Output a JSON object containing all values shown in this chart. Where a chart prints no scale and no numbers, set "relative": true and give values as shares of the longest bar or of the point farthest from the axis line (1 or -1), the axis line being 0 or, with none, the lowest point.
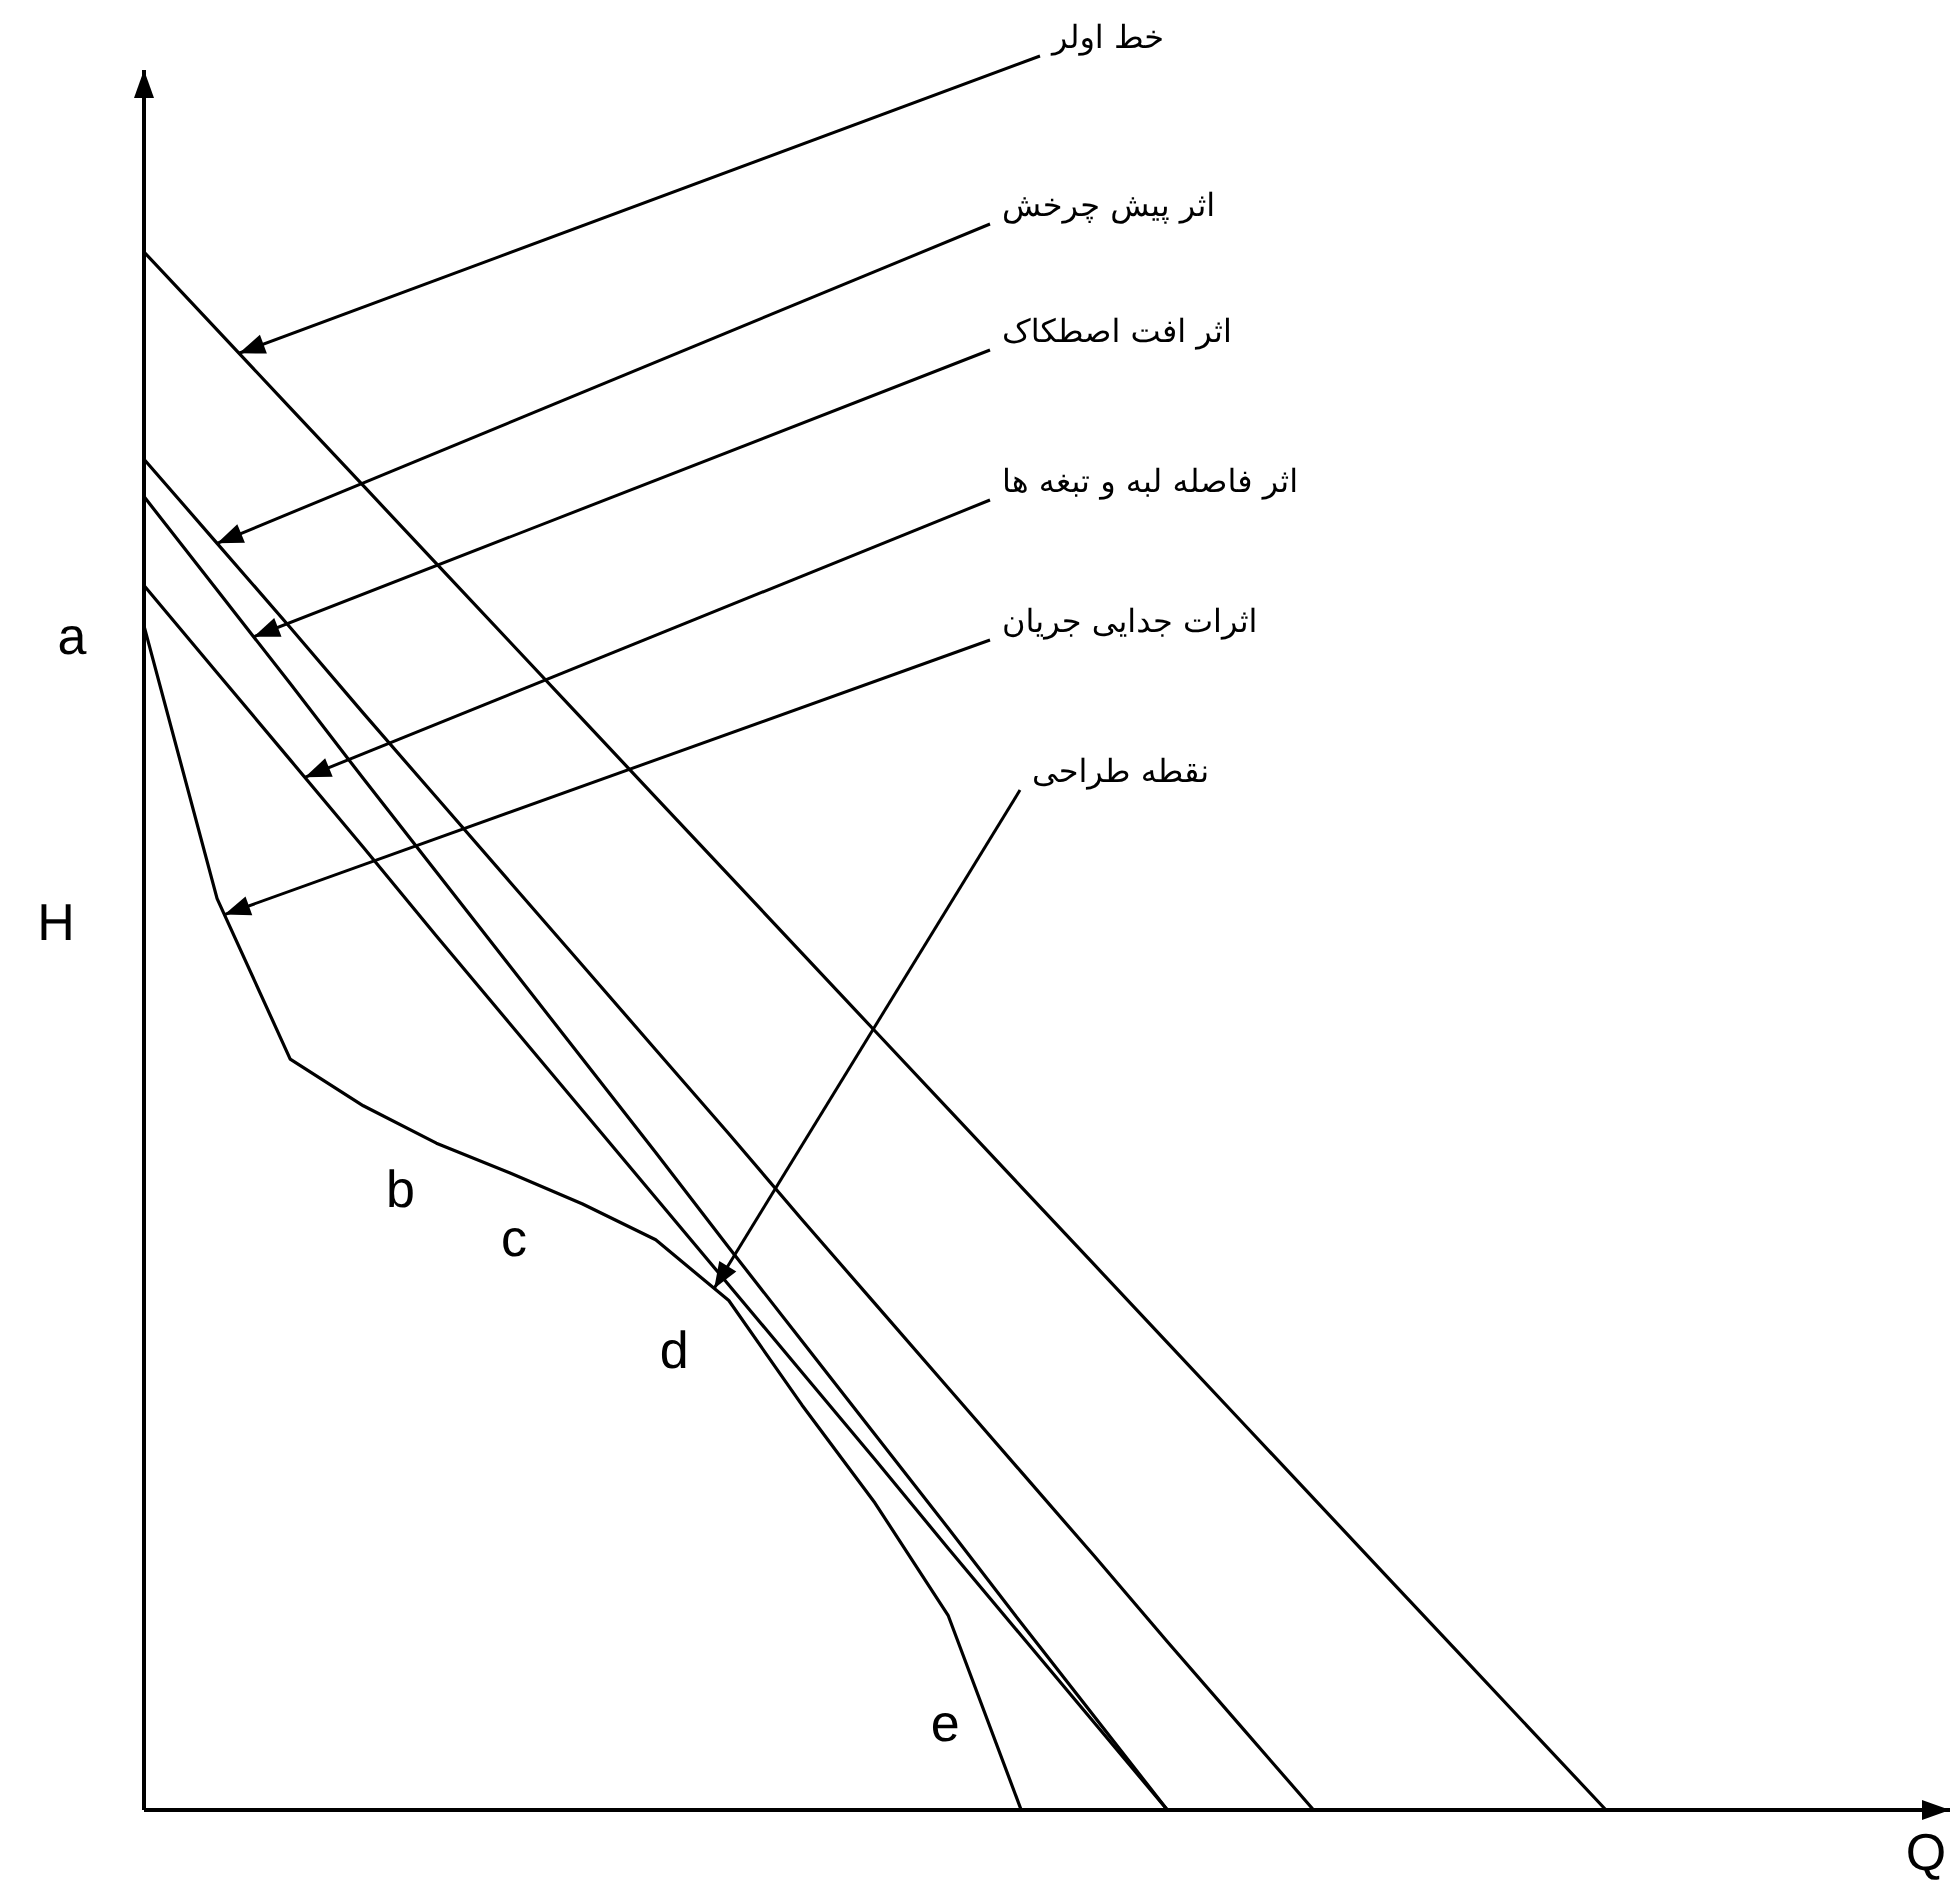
{
  "chart_data": {
    "type": "line",
    "relative": true,
    "ylabel": "H",
    "line_style": "solid",
    "categories": [
      null,
      null,
      null,
      null,
      null,
      null,
      null,
      null,
      null,
      null,
      null,
      null,
      null,
      null,
      null,
      null,
      null,
      null,
      null,
      null,
      null
    ],
    "series": [
      {
        "color": "#000000",
        "values": [
          1,
          0.95,
          0.9,
          0.85,
          0.8,
          0.75,
          0.7,
          0.65,
          0.6,
          0.55,
          0.5,
          0.45,
          0.4,
          0.35,
          0.3,
          0.25,
          0.2,
          0.15,
          0.1,
          0.05,
          0
        ]
      },
      {
        "color": "#000000",
        "values": [
          0.867,
          0.813,
          0.759,
          0.704,
          0.65,
          0.596,
          0.542,
          0.488,
          0.434,
          0.379,
          0.325,
          0.271,
          0.217,
          0.163,
          0.108,
          0.054,
          0,
          null,
          null,
          null,
          null
        ]
      },
      {
        "color": "#000000",
        "values": [
          0.843,
          0.783,
          0.723,
          0.662,
          0.602,
          0.542,
          0.482,
          0.422,
          0.361,
          0.301,
          0.241,
          0.181,
          0.12,
          0.06,
          0,
          null,
          null,
          null,
          null,
          null,
          null
        ]
      },
      {
        "color": "#000000",
        "values": [
          0.786,
          0.73,
          0.674,
          0.618,
          0.561,
          0.505,
          0.449,
          0.393,
          0.337,
          0.281,
          0.225,
          0.168,
          0.112,
          0.056,
          0,
          null,
          null,
          null,
          null,
          null,
          null
        ]
      },
      {
        "color": "#000000",
        "values": [
          0.76,
          0.585,
          0.482,
          0.452,
          0.428,
          0.409,
          0.389,
          0.366,
          0.327,
          0.26,
          0.197,
          0.125,
          0,
          null,
          null,
          null,
          null,
          null,
          null,
          null,
          null
        ]
      }
    ],
    "annotations": [
      "خط اولر",
      "اثر پیش چرخش",
      "اثر افت اصطکاک",
      "اثر فاصله لبه و تبغه ها",
      "اثرات جدایی جریان",
      "نقطه طراحی",
      "a",
      "b",
      "c",
      "d",
      "e",
      "Q"
    ]
  }
}
